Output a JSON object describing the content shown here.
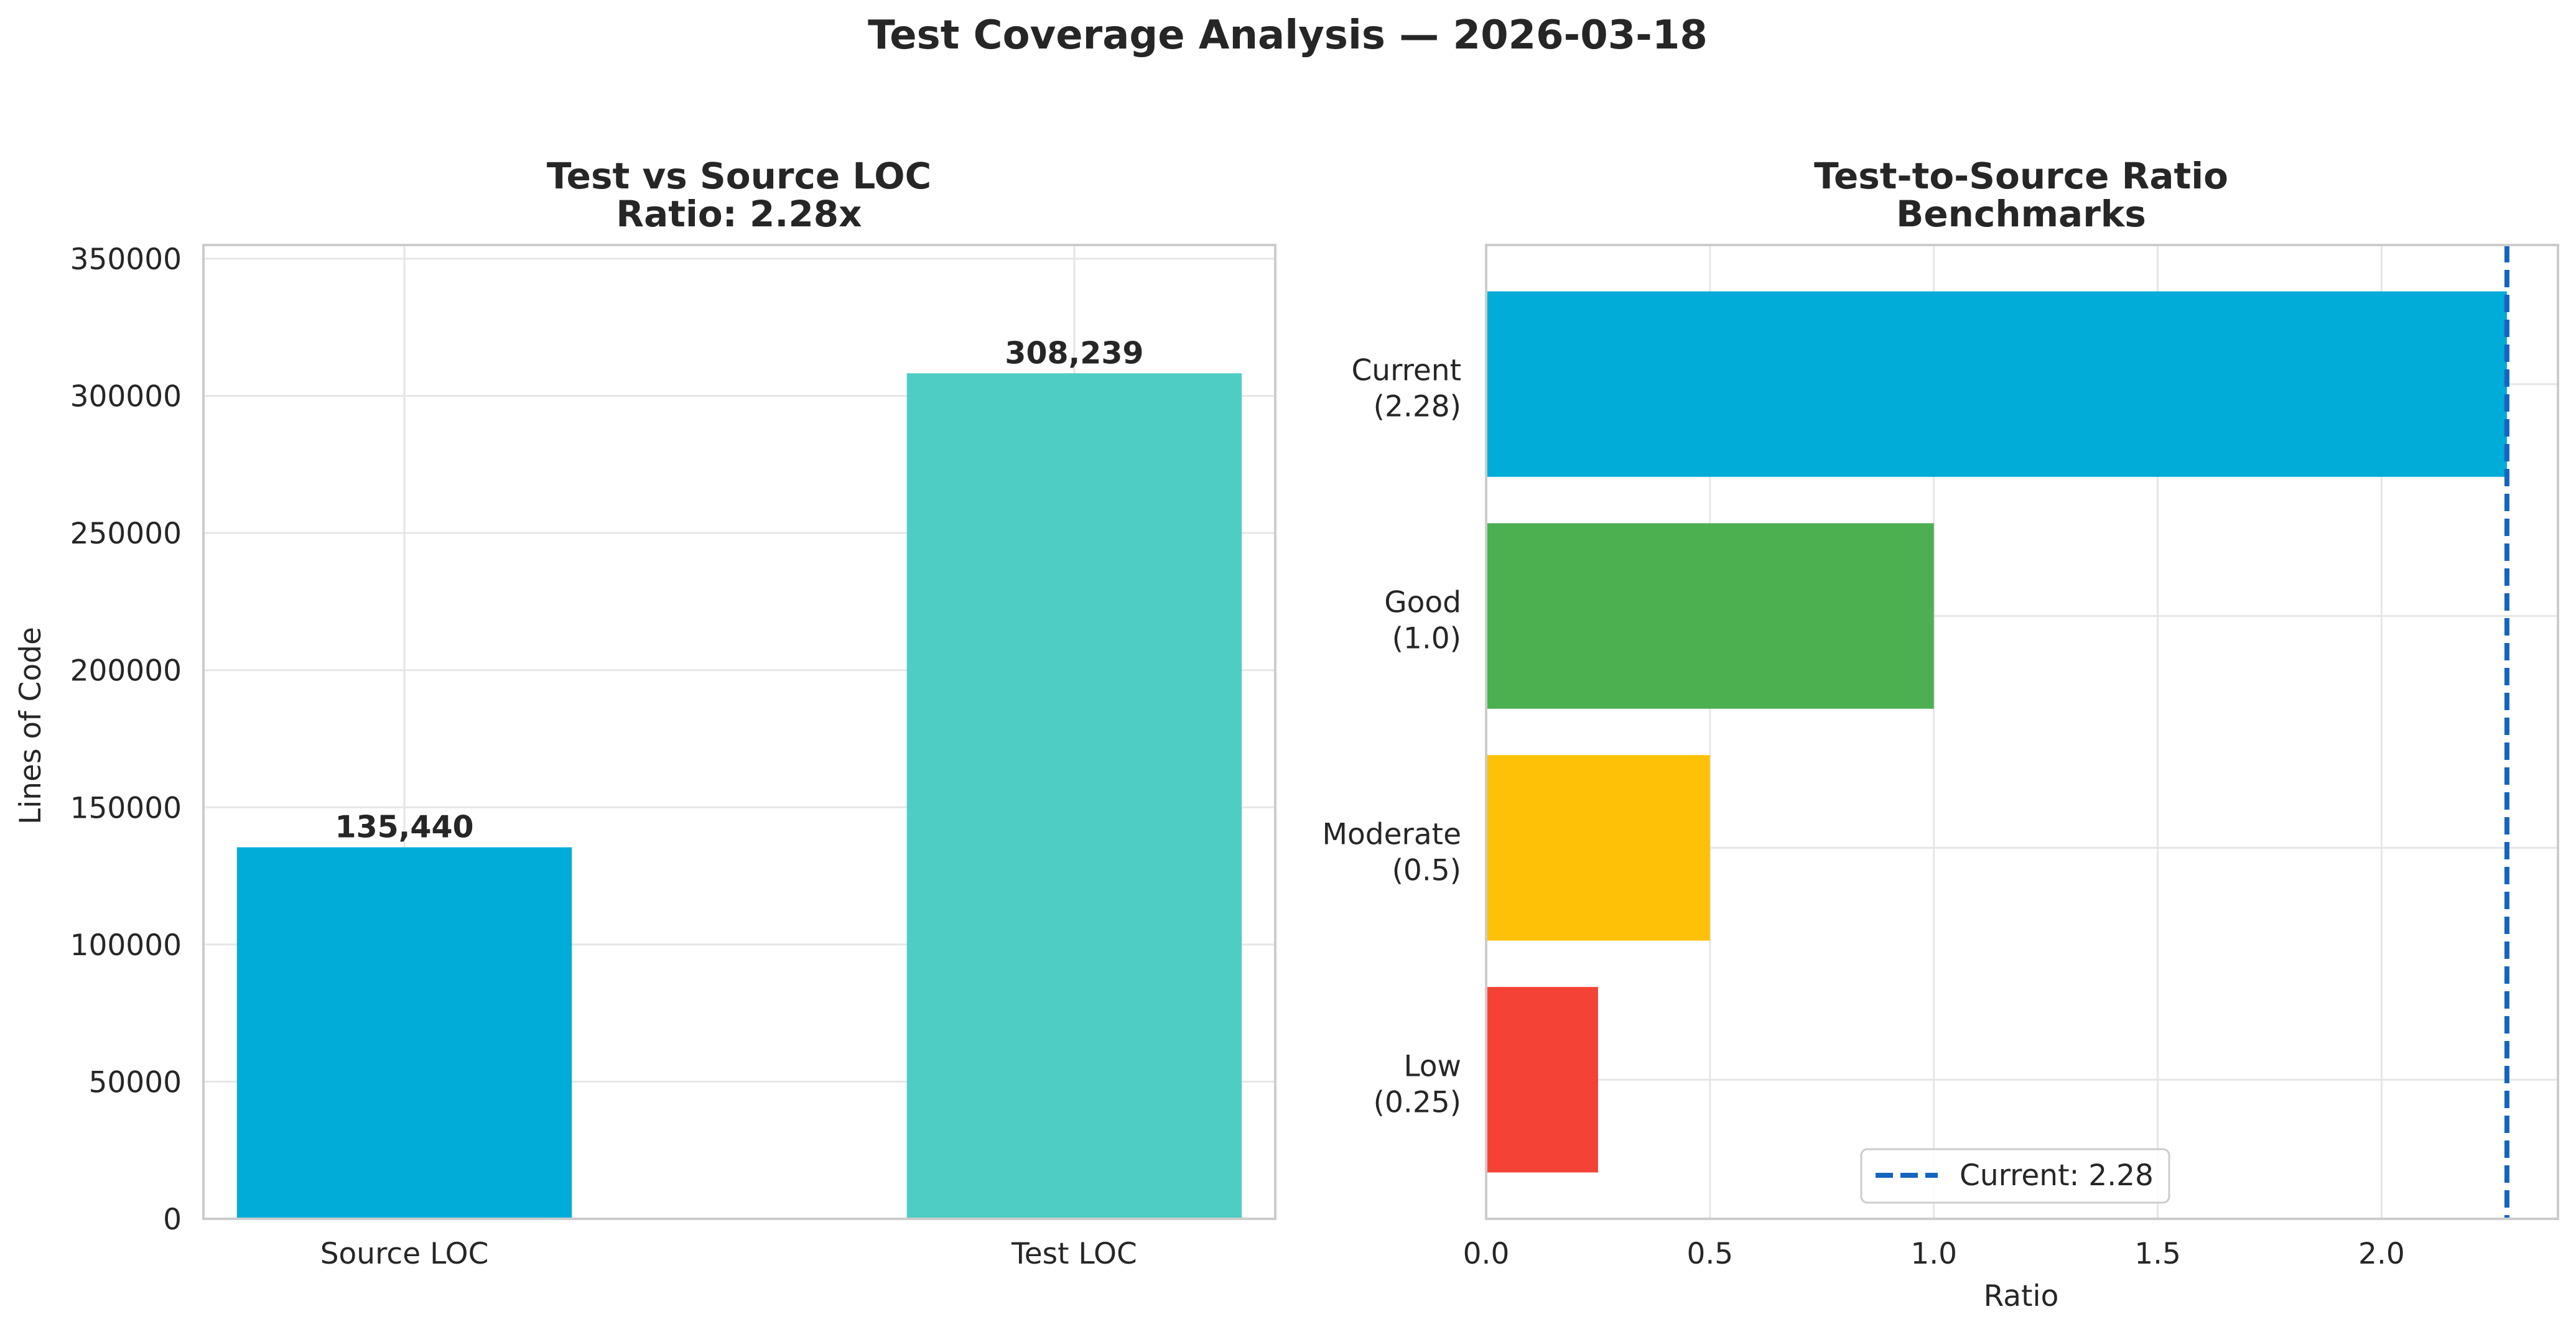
{
  "figure": {
    "suptitle": "Test Coverage Analysis — 2026-03-18"
  },
  "chart_data": [
    {
      "type": "bar",
      "title_line1": "Test vs Source LOC",
      "title_line2": "Ratio: 2.28x",
      "ylabel": "Lines of Code",
      "xlabel": "",
      "categories": [
        "Source LOC",
        "Test LOC"
      ],
      "values": [
        135440,
        308239
      ],
      "value_labels": [
        "135,440",
        "308,239"
      ],
      "colors": [
        "#02acd8",
        "#4ecdc4"
      ],
      "ylim": [
        0,
        355000
      ],
      "yticks": [
        0,
        50000,
        100000,
        150000,
        200000,
        250000,
        300000,
        350000
      ],
      "ytick_labels": [
        "0",
        "50000",
        "100000",
        "150000",
        "200000",
        "250000",
        "300000",
        "350000"
      ],
      "grid": true
    },
    {
      "type": "bar",
      "orientation": "horizontal",
      "title_line1": "Test-to-Source Ratio",
      "title_line2": "Benchmarks",
      "xlabel": "Ratio",
      "ylabel": "",
      "categories": [
        {
          "line1": "Current",
          "line2": "(2.28)"
        },
        {
          "line1": "Good",
          "line2": "(1.0)"
        },
        {
          "line1": "Moderate",
          "line2": "(0.5)"
        },
        {
          "line1": "Low",
          "line2": "(0.25)"
        }
      ],
      "values": [
        2.28,
        1.0,
        0.5,
        0.25
      ],
      "colors": [
        "#02acd8",
        "#4caf50",
        "#ffc107",
        "#f44336"
      ],
      "xlim": [
        0,
        2.394
      ],
      "xticks": [
        0,
        0.5,
        1.0,
        1.5,
        2.0
      ],
      "xtick_labels": [
        "0.0",
        "0.5",
        "1.0",
        "1.5",
        "2.0"
      ],
      "reference_line": {
        "value": 2.28,
        "color": "#1565c0",
        "style": "dashed"
      },
      "legend": {
        "label": "Current: 2.28",
        "placement": "lower center"
      },
      "grid": true
    }
  ]
}
